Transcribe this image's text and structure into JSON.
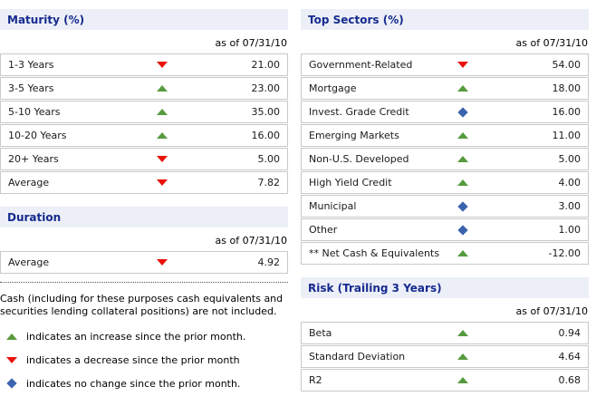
{
  "colors": {
    "increase": "#579B3E",
    "decrease": "#E8130C",
    "no_change": "#3C63AE",
    "header_bg": "#ECEFF7",
    "header_text": "#152A8E"
  },
  "panels": {
    "maturity": {
      "title": "Maturity (%)",
      "as_of": "as of 07/31/10",
      "rows": [
        {
          "label": "1-3 Years",
          "trend": "decrease",
          "value": "21.00"
        },
        {
          "label": "3-5 Years",
          "trend": "increase",
          "value": "23.00"
        },
        {
          "label": "5-10 Years",
          "trend": "increase",
          "value": "35.00"
        },
        {
          "label": "10-20 Years",
          "trend": "increase",
          "value": "16.00"
        },
        {
          "label": "20+ Years",
          "trend": "decrease",
          "value": "5.00"
        },
        {
          "label": "Average",
          "trend": "decrease",
          "value": "7.82"
        }
      ]
    },
    "duration": {
      "title": "Duration",
      "as_of": "as of 07/31/10",
      "rows": [
        {
          "label": "Average",
          "trend": "decrease",
          "value": "4.92"
        }
      ]
    },
    "top_sectors": {
      "title": "Top Sectors (%)",
      "as_of": "as of 07/31/10",
      "rows": [
        {
          "label": "Government-Related",
          "trend": "decrease",
          "value": "54.00"
        },
        {
          "label": "Mortgage",
          "trend": "increase",
          "value": "18.00"
        },
        {
          "label": "Invest. Grade Credit",
          "trend": "no_change",
          "value": "16.00"
        },
        {
          "label": "Emerging Markets",
          "trend": "increase",
          "value": "11.00"
        },
        {
          "label": "Non-U.S. Developed",
          "trend": "increase",
          "value": "5.00"
        },
        {
          "label": "High Yield Credit",
          "trend": "increase",
          "value": "4.00"
        },
        {
          "label": "Municipal",
          "trend": "no_change",
          "value": "3.00"
        },
        {
          "label": "Other",
          "trend": "no_change",
          "value": "1.00"
        },
        {
          "label": "** Net Cash & Equivalents",
          "trend": "increase",
          "value": "-12.00"
        }
      ]
    },
    "risk": {
      "title": "Risk (Trailing 3 Years)",
      "as_of": "as of 07/31/10",
      "rows": [
        {
          "label": "Beta",
          "trend": "increase",
          "value": "0.94"
        },
        {
          "label": "Standard Deviation",
          "trend": "increase",
          "value": "4.64"
        },
        {
          "label": "R2",
          "trend": "increase",
          "value": "0.68"
        }
      ]
    }
  },
  "footnote": "Cash (including for these purposes cash equivalents and securities lending collateral positions) are not included.",
  "legend": {
    "items": [
      {
        "trend": "increase",
        "text": "indicates an increase since the prior month."
      },
      {
        "trend": "decrease",
        "text": "indicates a decrease since the prior month"
      },
      {
        "trend": "no_change",
        "text": "indicates no change since the prior month."
      }
    ]
  }
}
